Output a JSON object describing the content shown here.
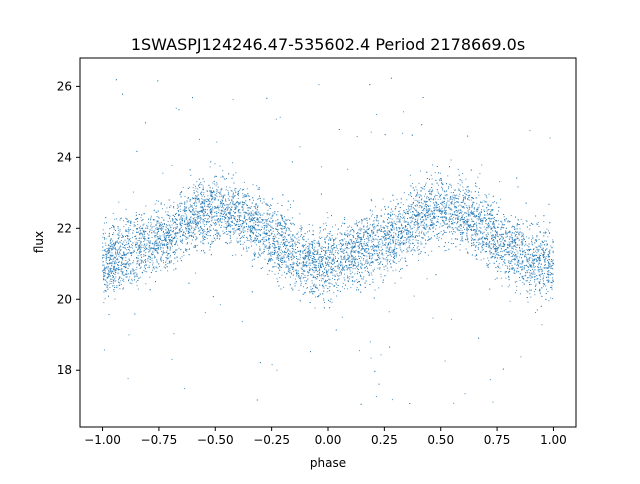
{
  "chart_data": {
    "type": "scatter",
    "title": "1SWASPJ124246.47-535602.4 Period 2178669.0s",
    "xlabel": "phase",
    "ylabel": "flux",
    "xlim": [
      -1.1,
      1.1
    ],
    "ylim": [
      16.4,
      26.8
    ],
    "xticks": [
      -1.0,
      -0.75,
      -0.5,
      -0.25,
      0.0,
      0.25,
      0.5,
      0.75,
      1.0
    ],
    "xtick_labels": [
      "−1.00",
      "−0.75",
      "−0.50",
      "−0.25",
      "0.00",
      "0.25",
      "0.50",
      "0.75",
      "1.00"
    ],
    "yticks": [
      18,
      20,
      22,
      24,
      26
    ],
    "ytick_labels": [
      "18",
      "20",
      "22",
      "24",
      "26"
    ],
    "grid": false,
    "marker_color": "#1f77b4",
    "series": [
      {
        "description": "phase-folded light curve, shown twice (phase -1 to 1)",
        "mean_curve": [
          [
            -1.0,
            21.0
          ],
          [
            -0.9,
            21.3
          ],
          [
            -0.8,
            21.5
          ],
          [
            -0.7,
            21.8
          ],
          [
            -0.6,
            22.3
          ],
          [
            -0.5,
            22.6
          ],
          [
            -0.4,
            22.4
          ],
          [
            -0.3,
            22.0
          ],
          [
            -0.2,
            21.5
          ],
          [
            -0.1,
            21.1
          ],
          [
            0.0,
            21.0
          ],
          [
            0.1,
            21.3
          ],
          [
            0.2,
            21.5
          ],
          [
            0.3,
            21.8
          ],
          [
            0.4,
            22.3
          ],
          [
            0.5,
            22.6
          ],
          [
            0.6,
            22.4
          ],
          [
            0.7,
            22.0
          ],
          [
            0.8,
            21.5
          ],
          [
            0.9,
            21.1
          ],
          [
            1.0,
            21.0
          ]
        ],
        "scatter_halfwidth": 0.8,
        "y_range_observed": [
          16.9,
          26.3
        ],
        "n_points_approx": 9000
      }
    ]
  }
}
